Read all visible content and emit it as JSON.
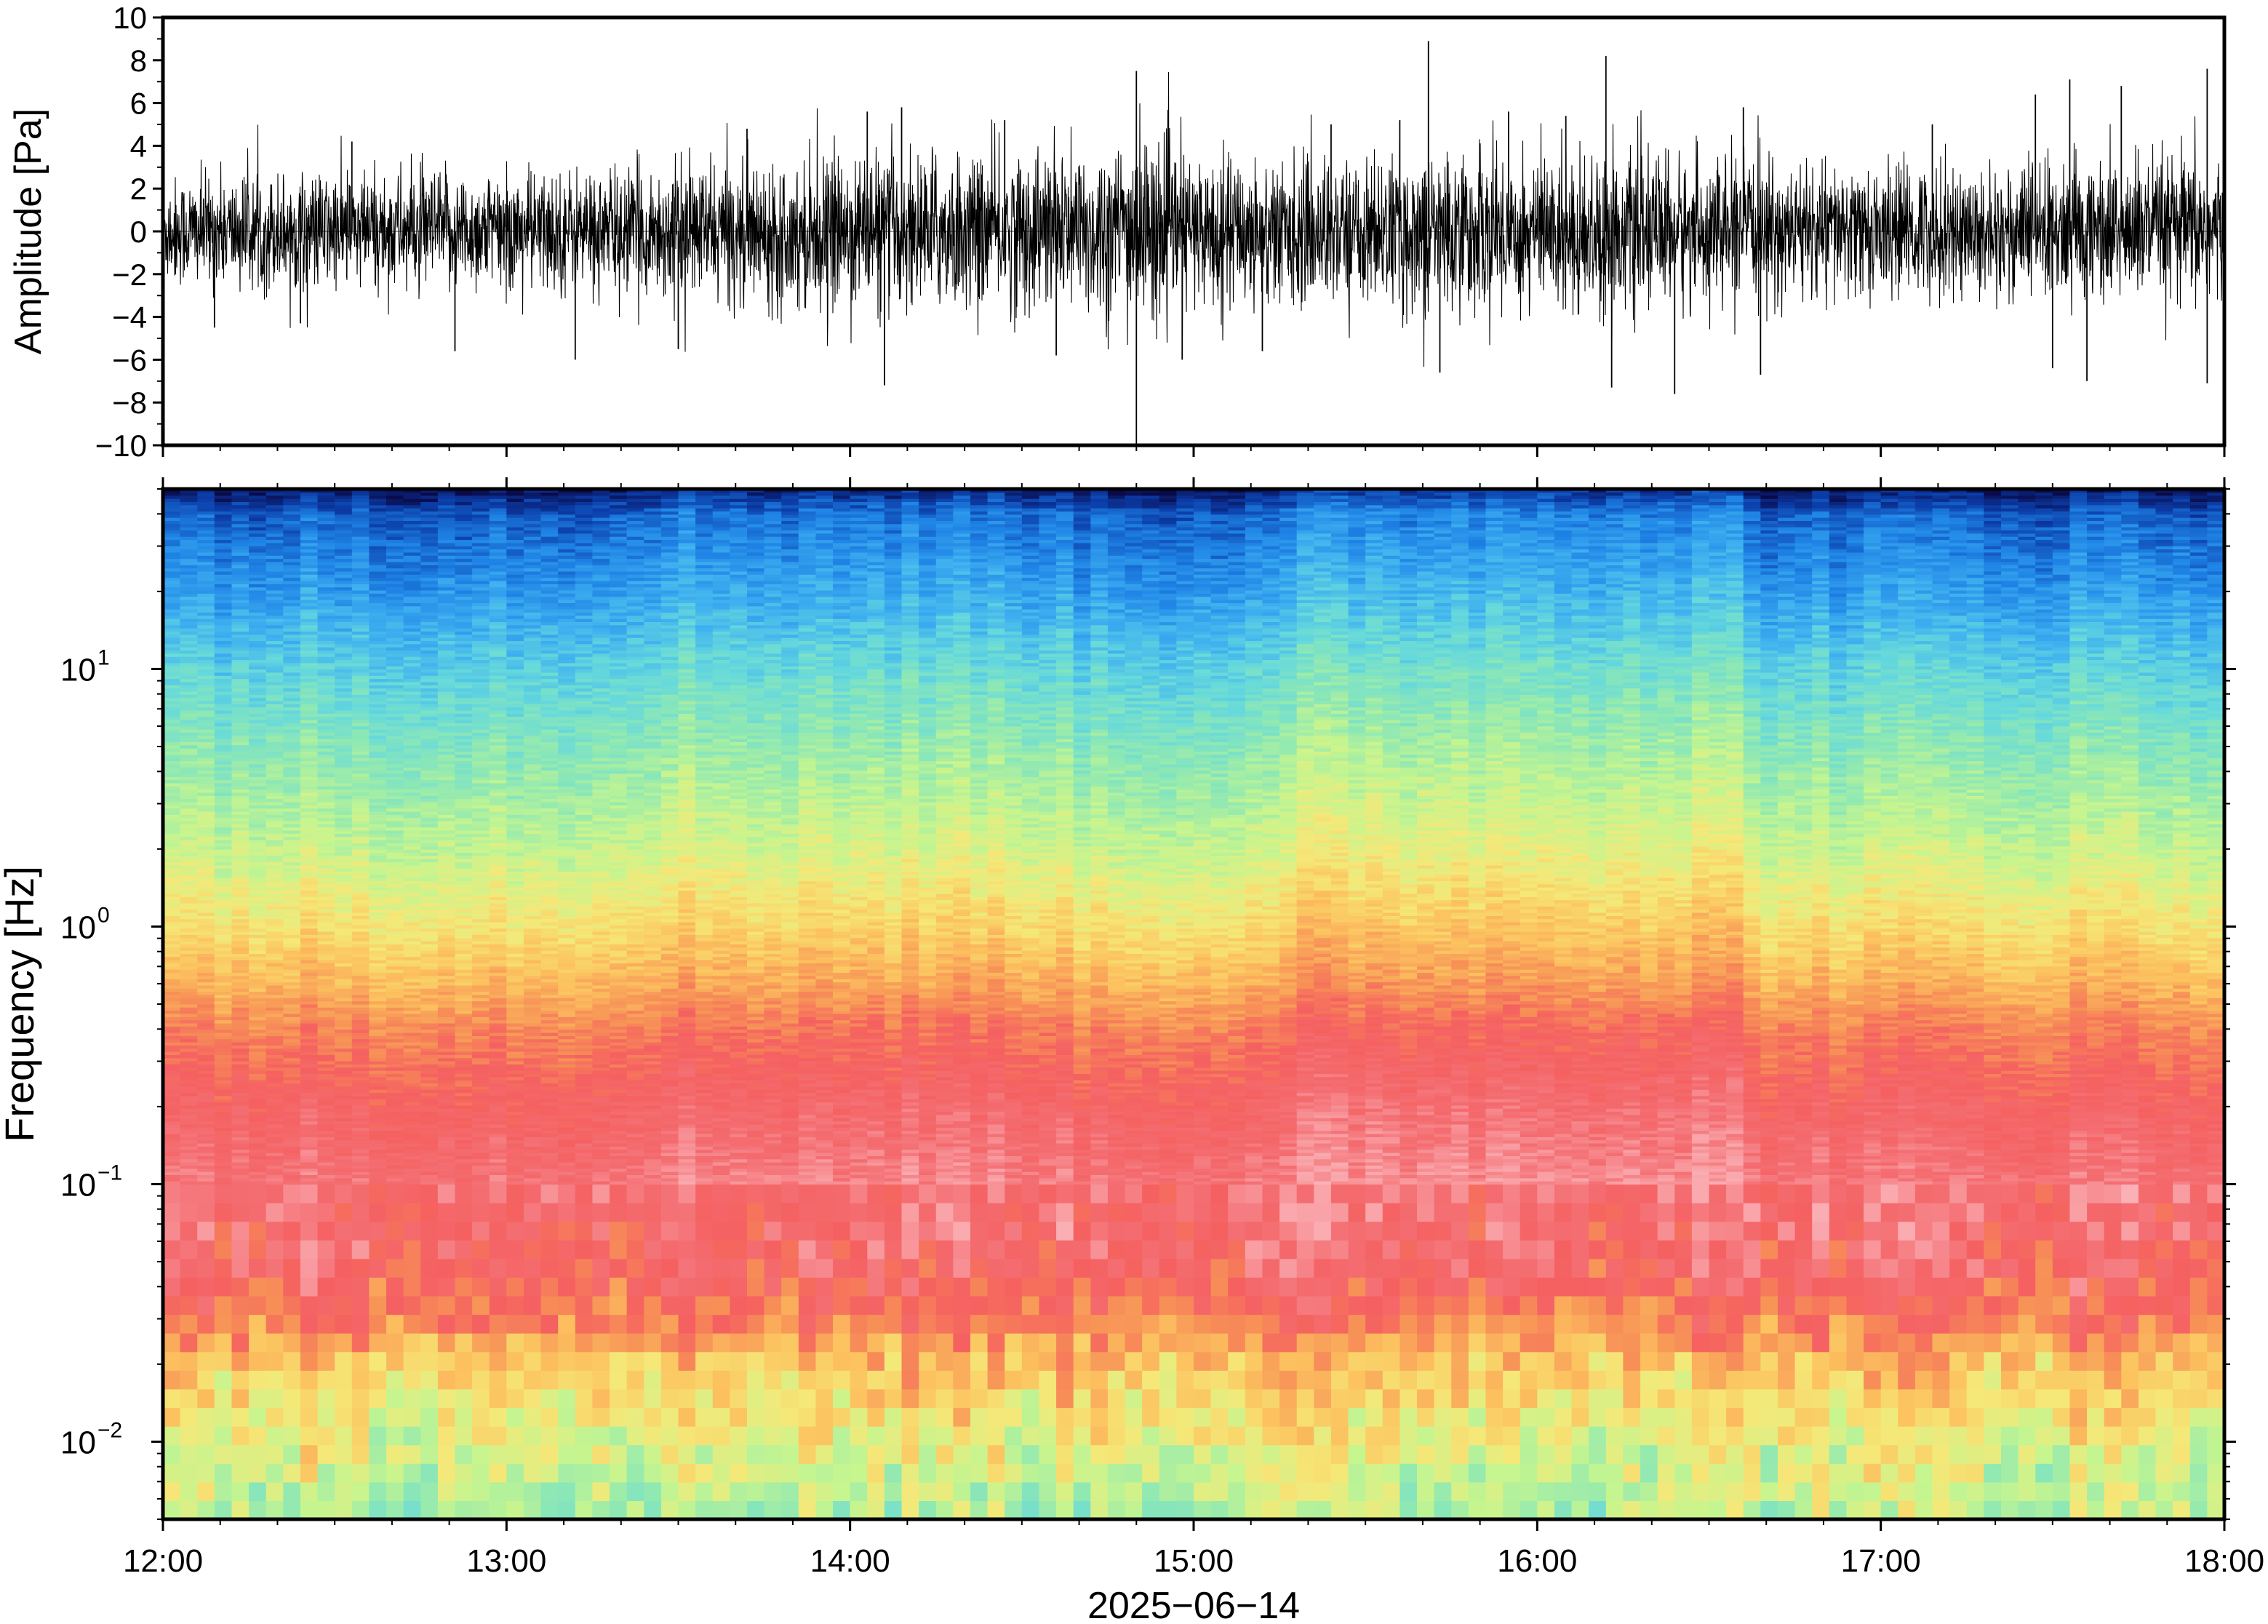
{
  "chart_data": [
    {
      "type": "line",
      "ylabel": "Amplitude [Pa]",
      "ylim": [
        -10,
        10
      ],
      "yticks": [
        -10,
        -8,
        -6,
        -4,
        -2,
        0,
        2,
        4,
        6,
        8,
        10
      ],
      "ytick_labels": [
        "−10",
        "−8",
        "−6",
        "−4",
        "−2",
        "0",
        "2",
        "4",
        "6",
        "8",
        "10"
      ],
      "xlim": [
        "12:00",
        "18:00"
      ],
      "series": [
        {
          "envelope_time_h": [
            12.0,
            12.5,
            13.0,
            13.5,
            14.0,
            14.5,
            14.7,
            14.83,
            15.0,
            15.5,
            15.7,
            16.0,
            16.2,
            16.5,
            17.0,
            17.5,
            18.0
          ],
          "envelope_amplitude": [
            2.0,
            2.2,
            2.2,
            2.4,
            2.8,
            3.0,
            3.2,
            3.6,
            2.8,
            2.6,
            3.0,
            3.0,
            3.0,
            2.6,
            2.4,
            2.6,
            2.8
          ],
          "spikes": [
            {
              "time": "12:09",
              "value": -4.5
            },
            {
              "time": "12:24",
              "value": -4.3
            },
            {
              "time": "12:33",
              "value": 4.2
            },
            {
              "time": "12:51",
              "value": -5.6
            },
            {
              "time": "13:12",
              "value": -6.0
            },
            {
              "time": "13:30",
              "value": -5.5
            },
            {
              "time": "13:42",
              "value": 4.8
            },
            {
              "time": "14:03",
              "value": 5.6
            },
            {
              "time": "14:06",
              "value": -7.2
            },
            {
              "time": "14:09",
              "value": 5.8
            },
            {
              "time": "14:27",
              "value": 5.2
            },
            {
              "time": "14:36",
              "value": -5.8
            },
            {
              "time": "14:50",
              "value": 7.5
            },
            {
              "time": "14:50",
              "value": -10.0
            },
            {
              "time": "14:58",
              "value": -6.0
            },
            {
              "time": "15:12",
              "value": -5.6
            },
            {
              "time": "15:24",
              "value": 5.0
            },
            {
              "time": "15:36",
              "value": 5.2
            },
            {
              "time": "15:41",
              "value": 8.9
            },
            {
              "time": "15:43",
              "value": -6.6
            },
            {
              "time": "15:55",
              "value": 5.6
            },
            {
              "time": "16:05",
              "value": 5.4
            },
            {
              "time": "16:12",
              "value": 8.2
            },
            {
              "time": "16:13",
              "value": -7.3
            },
            {
              "time": "16:24",
              "value": -7.6
            },
            {
              "time": "16:36",
              "value": 5.8
            },
            {
              "time": "16:39",
              "value": -6.7
            },
            {
              "time": "17:09",
              "value": 5.0
            },
            {
              "time": "17:27",
              "value": 6.4
            },
            {
              "time": "17:30",
              "value": -6.4
            },
            {
              "time": "17:33",
              "value": 7.1
            },
            {
              "time": "17:36",
              "value": -7.0
            },
            {
              "time": "17:42",
              "value": 6.8
            },
            {
              "time": "17:57",
              "value": 7.6
            },
            {
              "time": "17:57",
              "value": -7.1
            }
          ]
        }
      ]
    },
    {
      "type": "heatmap",
      "ylabel": "Frequency [Hz]",
      "xlabel": "2025−06−14",
      "y_scale": "log",
      "ylim": [
        0.005,
        50
      ],
      "yticks": [
        0.01,
        0.1,
        1,
        10
      ],
      "ytick_labels": [
        {
          "base": "10",
          "exp": "−2"
        },
        {
          "base": "10",
          "exp": "−1"
        },
        {
          "base": "10",
          "exp": "0"
        },
        {
          "base": "10",
          "exp": "1"
        }
      ],
      "xticks": [
        "12:00",
        "13:00",
        "14:00",
        "15:00",
        "16:00",
        "17:00",
        "18:00"
      ],
      "xlim": [
        "12:00",
        "18:00"
      ],
      "time_bins": 120,
      "colormap": [
        "#0a0a4a",
        "#0b3da8",
        "#1f84e6",
        "#3fb1f0",
        "#66d9dc",
        "#8ee8b4",
        "#c6f58f",
        "#f5e878",
        "#fcc25f",
        "#f79257",
        "#f56060",
        "#f46e72",
        "#f9a3a8",
        "#fcc0c4"
      ],
      "level_profile": [
        {
          "freq_hz": 50,
          "level": 0.02
        },
        {
          "freq_hz": 40,
          "level": 0.12
        },
        {
          "freq_hz": 20,
          "level": 0.2
        },
        {
          "freq_hz": 10,
          "level": 0.3
        },
        {
          "freq_hz": 5,
          "level": 0.38
        },
        {
          "freq_hz": 2,
          "level": 0.47
        },
        {
          "freq_hz": 1,
          "level": 0.56
        },
        {
          "freq_hz": 0.6,
          "level": 0.64
        },
        {
          "freq_hz": 0.4,
          "level": 0.72
        },
        {
          "freq_hz": 0.2,
          "level": 0.8
        },
        {
          "freq_hz": 0.1,
          "level": 0.86
        },
        {
          "freq_hz": 0.05,
          "level": 0.82
        },
        {
          "freq_hz": 0.03,
          "level": 0.74
        },
        {
          "freq_hz": 0.02,
          "level": 0.62
        },
        {
          "freq_hz": 0.01,
          "level": 0.52
        },
        {
          "freq_hz": 0.005,
          "level": 0.45
        }
      ]
    }
  ]
}
